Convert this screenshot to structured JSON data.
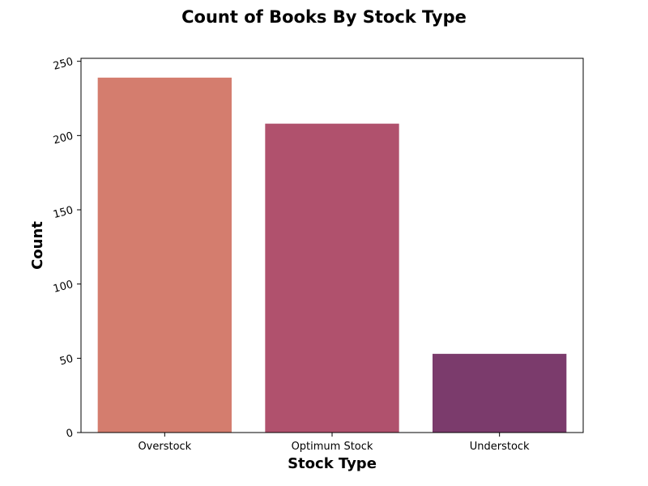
{
  "chart_data": {
    "type": "bar",
    "title": "Count of Books By Stock Type",
    "xlabel": "Stock Type",
    "ylabel": "Count",
    "categories": [
      "Overstock",
      "Optimum Stock",
      "Understock"
    ],
    "values": [
      239,
      208,
      53
    ],
    "colors": [
      "#d47d6e",
      "#b0516d",
      "#7b3b6c"
    ],
    "ylim": [
      0,
      252
    ],
    "yticks": [
      0,
      50,
      100,
      150,
      200,
      250
    ],
    "grid": false
  }
}
